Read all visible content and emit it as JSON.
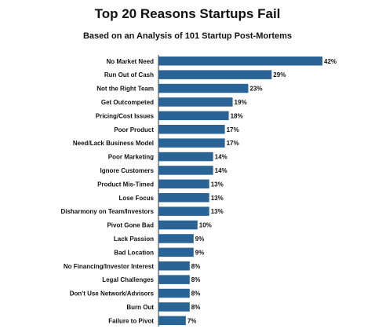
{
  "chart_data": {
    "type": "bar",
    "orientation": "horizontal",
    "title": "Top 20 Reasons Startups Fail",
    "subtitle": "Based on an Analysis of 101 Startup Post-Mortems",
    "bar_color": "#2a6496",
    "value_suffix": "%",
    "xlim": [
      0,
      42
    ],
    "grid": false,
    "categories": [
      "No Market Need",
      "Run Out of Cash",
      "Not the Right Team",
      "Get Outcompeted",
      "Pricing/Cost Issues",
      "Poor Product",
      "Need/Lack Business Model",
      "Poor Marketing",
      "Ignore Customers",
      "Product Mis-Timed",
      "Lose Focus",
      "Disharmony on Team/Investors",
      "Pivot Gone Bad",
      "Lack Passion",
      "Bad Location",
      "No Financing/Investor Interest",
      "Legal Challenges",
      "Don't Use Network/Advisors",
      "Burn Out",
      "Failure to Pivot"
    ],
    "values": [
      42,
      29,
      23,
      19,
      18,
      17,
      17,
      14,
      14,
      13,
      13,
      13,
      10,
      9,
      9,
      8,
      8,
      8,
      8,
      7
    ]
  }
}
